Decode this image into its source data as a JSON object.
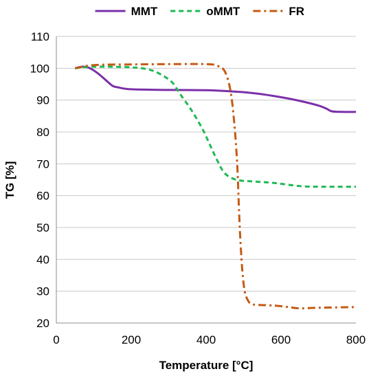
{
  "chart_data": {
    "type": "line",
    "xlabel": "Temperature [°C]",
    "ylabel": "TG [%]",
    "xlim": [
      0,
      800
    ],
    "ylim": [
      20,
      110
    ],
    "x_ticks": [
      "0",
      "200",
      "400",
      "600",
      "800"
    ],
    "y_ticks": [
      "20",
      "30",
      "40",
      "50",
      "60",
      "70",
      "80",
      "90",
      "100",
      "110"
    ],
    "grid": "horizontal",
    "legend_position": "top",
    "series": [
      {
        "name": "MMT",
        "color": "#7b2fa8",
        "style": "solid",
        "x": [
          50,
          70,
          90,
          110,
          130,
          150,
          165,
          200,
          300,
          400,
          460,
          500,
          540,
          580,
          620,
          660,
          700,
          720,
          735,
          760,
          800
        ],
        "y": [
          100,
          100.5,
          100,
          98.5,
          96.5,
          94.5,
          94,
          93.4,
          93.2,
          93.1,
          92.8,
          92.5,
          92,
          91.3,
          90.5,
          89.5,
          88.3,
          87.4,
          86.5,
          86.3,
          86.3
        ]
      },
      {
        "name": "oMMT",
        "color": "#1db954",
        "style": "dashed",
        "x": [
          50,
          100,
          200,
          250,
          280,
          310,
          330,
          360,
          390,
          410,
          430,
          450,
          480,
          520,
          580,
          650,
          700,
          800
        ],
        "y": [
          100,
          100.5,
          100.3,
          99.5,
          98,
          95.5,
          92,
          87,
          81,
          76,
          71,
          67,
          65,
          64.5,
          64,
          63,
          62.8,
          62.8
        ]
      },
      {
        "name": "FR",
        "color": "#c55a11",
        "style": "dashdot",
        "x": [
          50,
          100,
          200,
          300,
          400,
          430,
          450,
          465,
          475,
          483,
          488,
          492,
          497,
          503,
          510,
          520,
          540,
          580,
          620,
          650,
          700,
          800
        ],
        "y": [
          100,
          101,
          101.2,
          101.3,
          101.3,
          100.8,
          99,
          93,
          83,
          70,
          55,
          45,
          36,
          30,
          27.5,
          26,
          25.7,
          25.5,
          25,
          24.6,
          24.8,
          25
        ]
      }
    ]
  }
}
